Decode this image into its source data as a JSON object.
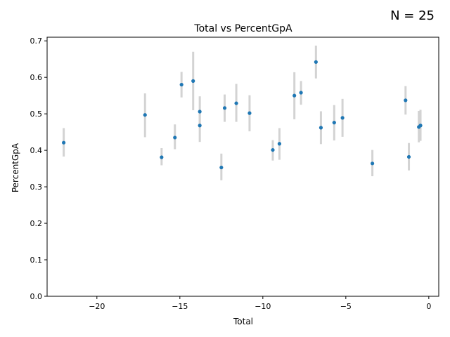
{
  "annotation": "N = 25",
  "chart_data": {
    "type": "scatter",
    "title": "Total vs PercentGpA",
    "xlabel": "Total",
    "ylabel": "PercentGpA",
    "xlim": [
      -23.0,
      0.6
    ],
    "ylim": [
      0.0,
      0.71
    ],
    "xticks": [
      -20,
      -15,
      -10,
      -5,
      0
    ],
    "xtick_labels": [
      "−20",
      "−15",
      "−10",
      "−5",
      "0"
    ],
    "yticks": [
      0.0,
      0.1,
      0.2,
      0.3,
      0.4,
      0.5,
      0.6,
      0.7
    ],
    "ytick_labels": [
      "0.0",
      "0.1",
      "0.2",
      "0.3",
      "0.4",
      "0.5",
      "0.6",
      "0.7"
    ],
    "grid": false,
    "colors": {
      "point": "#1f77b4",
      "errorbar": "#d3d3d3"
    },
    "points": [
      {
        "x": -22.0,
        "y": 0.421,
        "lo": 0.383,
        "hi": 0.461
      },
      {
        "x": -17.1,
        "y": 0.497,
        "lo": 0.436,
        "hi": 0.556
      },
      {
        "x": -16.1,
        "y": 0.381,
        "lo": 0.359,
        "hi": 0.406
      },
      {
        "x": -15.3,
        "y": 0.435,
        "lo": 0.403,
        "hi": 0.471
      },
      {
        "x": -14.9,
        "y": 0.58,
        "lo": 0.545,
        "hi": 0.615
      },
      {
        "x": -14.2,
        "y": 0.59,
        "lo": 0.51,
        "hi": 0.67
      },
      {
        "x": -13.8,
        "y": 0.506,
        "lo": 0.468,
        "hi": 0.548
      },
      {
        "x": -13.8,
        "y": 0.468,
        "lo": 0.423,
        "hi": 0.512
      },
      {
        "x": -12.5,
        "y": 0.353,
        "lo": 0.318,
        "hi": 0.391
      },
      {
        "x": -12.3,
        "y": 0.516,
        "lo": 0.478,
        "hi": 0.553
      },
      {
        "x": -11.6,
        "y": 0.529,
        "lo": 0.478,
        "hi": 0.582
      },
      {
        "x": -10.8,
        "y": 0.502,
        "lo": 0.452,
        "hi": 0.551
      },
      {
        "x": -9.4,
        "y": 0.401,
        "lo": 0.372,
        "hi": 0.428
      },
      {
        "x": -9.0,
        "y": 0.418,
        "lo": 0.374,
        "hi": 0.461
      },
      {
        "x": -8.1,
        "y": 0.55,
        "lo": 0.485,
        "hi": 0.614
      },
      {
        "x": -7.7,
        "y": 0.558,
        "lo": 0.525,
        "hi": 0.59
      },
      {
        "x": -6.8,
        "y": 0.642,
        "lo": 0.597,
        "hi": 0.687
      },
      {
        "x": -6.5,
        "y": 0.462,
        "lo": 0.417,
        "hi": 0.507
      },
      {
        "x": -5.7,
        "y": 0.476,
        "lo": 0.427,
        "hi": 0.524
      },
      {
        "x": -5.2,
        "y": 0.489,
        "lo": 0.437,
        "hi": 0.541
      },
      {
        "x": -3.4,
        "y": 0.364,
        "lo": 0.329,
        "hi": 0.401
      },
      {
        "x": -1.4,
        "y": 0.537,
        "lo": 0.498,
        "hi": 0.576
      },
      {
        "x": -1.2,
        "y": 0.382,
        "lo": 0.345,
        "hi": 0.42
      },
      {
        "x": -0.6,
        "y": 0.464,
        "lo": 0.422,
        "hi": 0.508
      },
      {
        "x": -0.5,
        "y": 0.468,
        "lo": 0.426,
        "hi": 0.511
      }
    ]
  }
}
